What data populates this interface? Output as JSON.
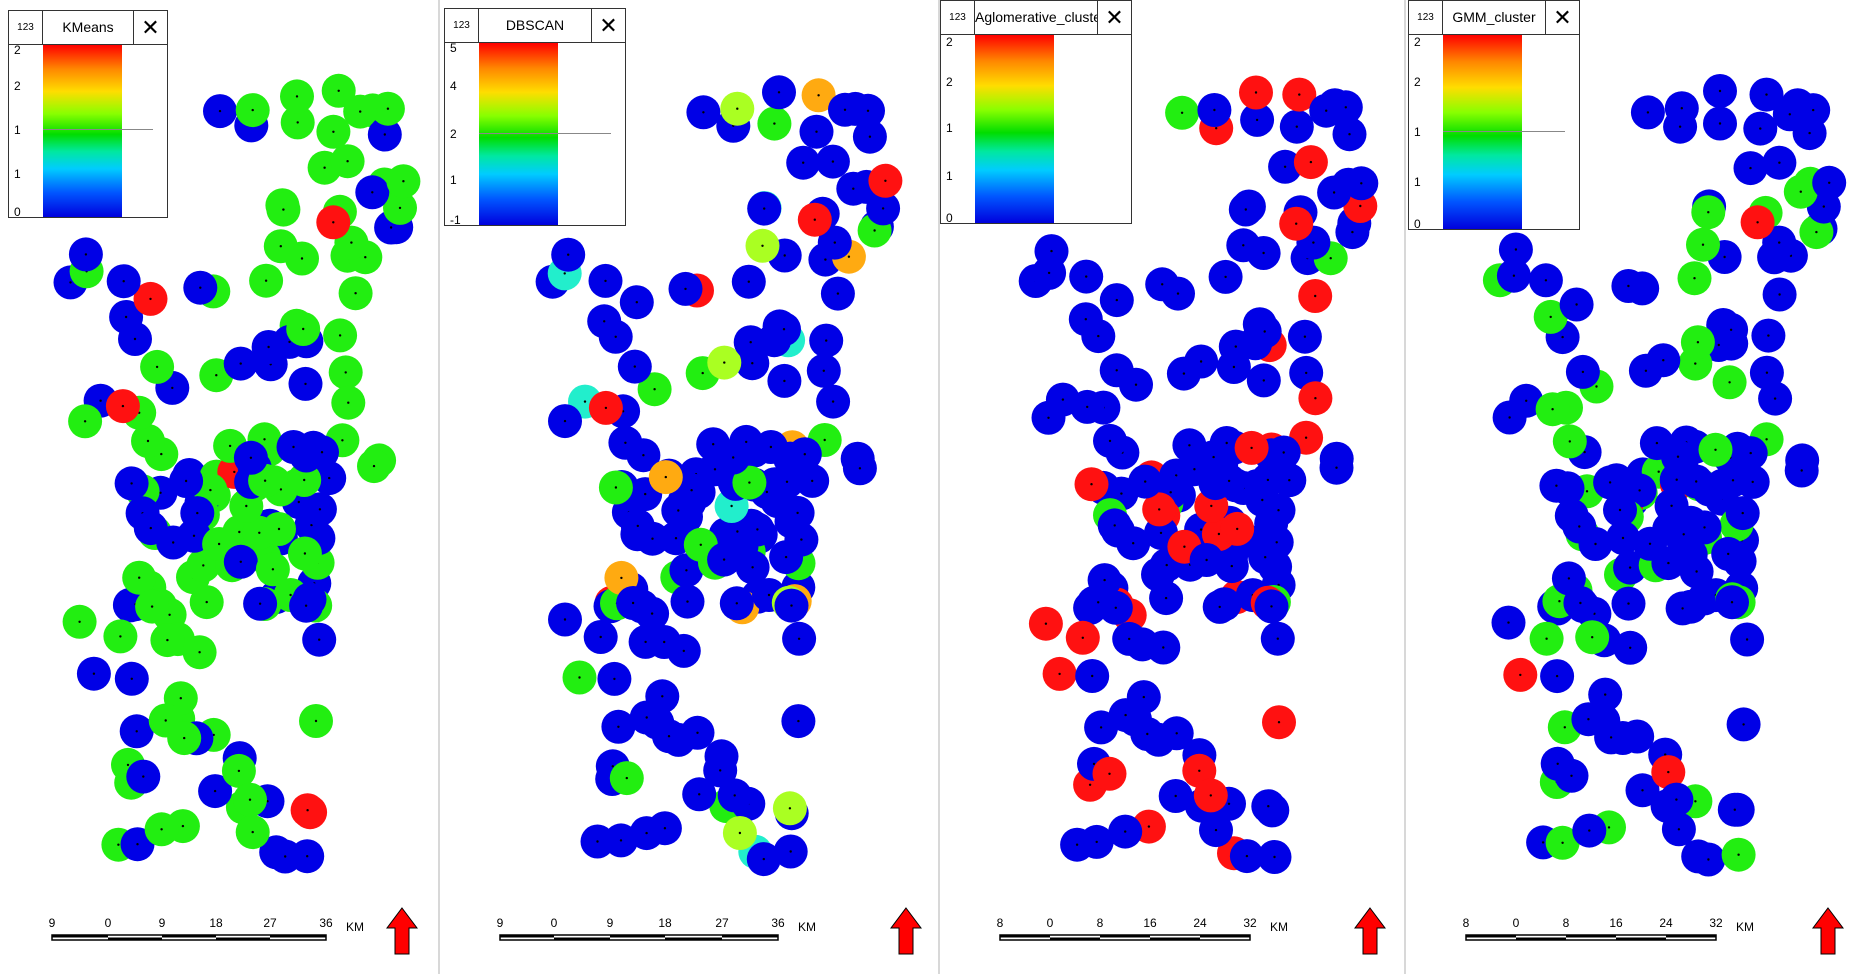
{
  "panels": [
    {
      "title": "KMeans",
      "legend_ticks": [
        "2",
        "2",
        "1",
        "1",
        "0"
      ],
      "scale_labels": [
        "9",
        "0",
        "9",
        "18",
        "27",
        "36"
      ],
      "scale_unit": "KM",
      "clusters": {
        "red": 6,
        "green": 98,
        "blue": 66
      }
    },
    {
      "title": "DBSCAN",
      "legend_ticks": [
        "5",
        "4",
        "2",
        "1",
        "-1"
      ],
      "scale_labels": [
        "9",
        "0",
        "9",
        "18",
        "27",
        "36"
      ],
      "scale_unit": "KM",
      "clusters": {
        "red": 5,
        "orange": 7,
        "yellow-green": 6,
        "green": 16,
        "cyan": 6,
        "blue": 130
      }
    },
    {
      "title": "Aglomerative_cluster",
      "legend_ticks": [
        "2",
        "2",
        "1",
        "1",
        "0"
      ],
      "scale_labels": [
        "8",
        "0",
        "8",
        "16",
        "24",
        "32"
      ],
      "scale_unit": "KM",
      "clusters": {
        "red": 34,
        "green": 5,
        "blue": 131
      }
    },
    {
      "title": "GMM_cluster",
      "legend_ticks": [
        "2",
        "2",
        "1",
        "1",
        "0"
      ],
      "scale_labels": [
        "8",
        "0",
        "8",
        "16",
        "24",
        "32"
      ],
      "scale_unit": "KM",
      "clusters": {
        "red": 5,
        "green": 40,
        "blue": 125
      }
    }
  ],
  "legend_icon": "123",
  "close_icon": "✕",
  "colors": {
    "blue": "#0000e6",
    "green": "#22ee11",
    "red": "#ff1111",
    "orange": "#ffaa11",
    "yellow_green": "#aaff22",
    "cyan": "#22eecc",
    "light_blue": "#22aaee",
    "north_arrow": "#ff0000"
  }
}
